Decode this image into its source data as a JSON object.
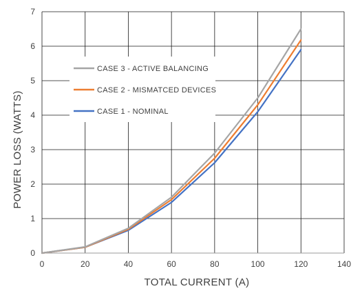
{
  "chart_data": {
    "type": "line",
    "title": "",
    "xlabel": "TOTAL CURRENT (A)",
    "ylabel": "POWER LOSS (WATTS)",
    "xlim": [
      0,
      140
    ],
    "ylim": [
      0,
      7
    ],
    "x_ticks": [
      "0",
      "20",
      "40",
      "60",
      "80",
      "100",
      "120",
      "140"
    ],
    "y_ticks": [
      "0",
      "1",
      "2",
      "3",
      "4",
      "5",
      "6",
      "7"
    ],
    "grid": true,
    "legend_position": "upper-left (inside plot)",
    "series": [
      {
        "name": "CASE 3 - ACTIVE BALANCING",
        "color": "#a5a5a5",
        "x": [
          0,
          20,
          40,
          60,
          80,
          100,
          120
        ],
        "y": [
          0,
          0.18,
          0.72,
          1.62,
          2.9,
          4.5,
          6.5
        ]
      },
      {
        "name": "CASE 2 - MISMATCED DEVICES",
        "color": "#ed7d31",
        "x": [
          0,
          20,
          40,
          60,
          80,
          100,
          120
        ],
        "y": [
          0,
          0.17,
          0.69,
          1.55,
          2.75,
          4.3,
          6.18
        ]
      },
      {
        "name": "CASE 1 - NOMINAL",
        "color": "#4472c4",
        "x": [
          0,
          20,
          40,
          60,
          80,
          100,
          120
        ],
        "y": [
          0,
          0.17,
          0.66,
          1.47,
          2.62,
          4.1,
          5.9
        ]
      }
    ]
  }
}
